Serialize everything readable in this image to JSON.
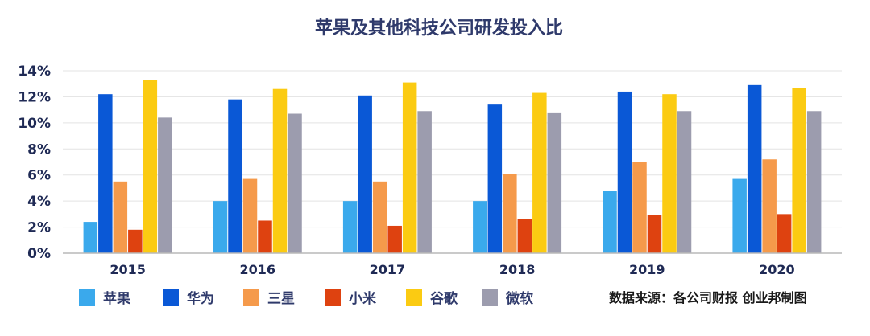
{
  "chart_data": {
    "type": "bar",
    "title": "苹果及其他科技公司研发投入比",
    "categories": [
      "2015",
      "2016",
      "2017",
      "2018",
      "2019",
      "2020"
    ],
    "ylim": [
      0,
      14
    ],
    "yticks": [
      "0%",
      "2%",
      "4%",
      "6%",
      "8%",
      "10%",
      "12%",
      "14%"
    ],
    "grid": true,
    "legend_position": "bottom",
    "series": [
      {
        "name": "苹果",
        "color": "#3aa9ec",
        "values": [
          2.4,
          4.0,
          4.0,
          4.0,
          4.8,
          5.7
        ]
      },
      {
        "name": "华为",
        "color": "#0a58d6",
        "values": [
          12.2,
          11.8,
          12.1,
          11.4,
          12.4,
          12.9
        ]
      },
      {
        "name": "三星",
        "color": "#f59a4b",
        "values": [
          5.5,
          5.7,
          5.5,
          6.1,
          7.0,
          7.2
        ]
      },
      {
        "name": "小米",
        "color": "#de4210",
        "values": [
          1.8,
          2.5,
          2.1,
          2.6,
          2.9,
          3.0
        ]
      },
      {
        "name": "谷歌",
        "color": "#fbcb12",
        "values": [
          13.3,
          12.6,
          13.1,
          12.3,
          12.2,
          12.7
        ]
      },
      {
        "name": "微软",
        "color": "#9c9cae",
        "values": [
          10.4,
          10.7,
          10.9,
          10.8,
          10.9,
          10.9
        ]
      }
    ],
    "source": "数据来源：各公司财报  创业邦制图"
  }
}
